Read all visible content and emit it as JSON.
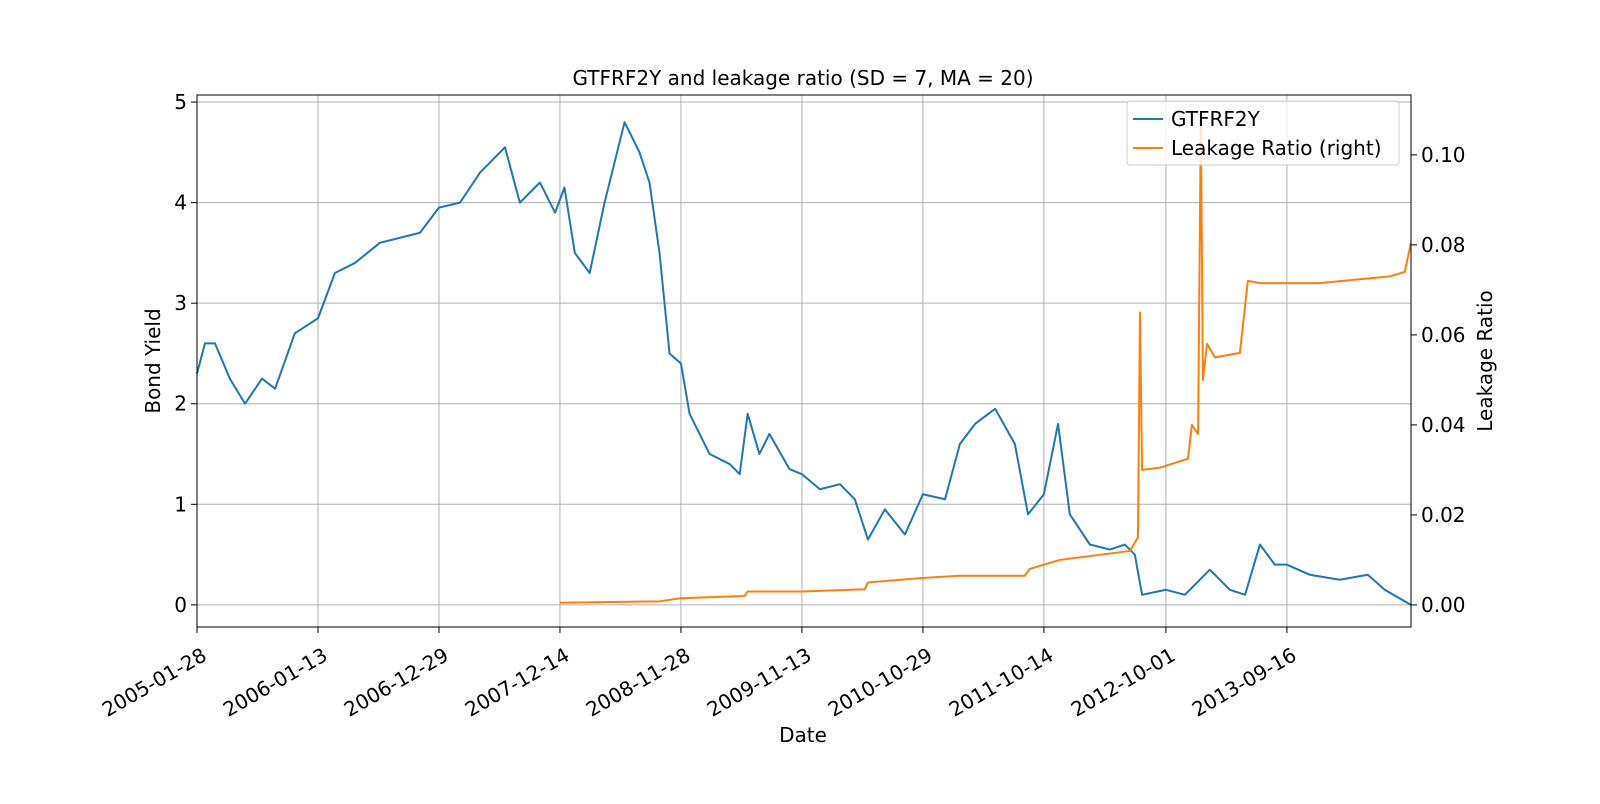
{
  "chart_data": {
    "type": "line",
    "title": "GTFRF2Y and leakage ratio (SD = 7, MA = 20)",
    "x_label": "Date",
    "y_label": "Bond Yield",
    "y2_label": "Leakage Ratio",
    "xlim": [
      "2005-01-28",
      "2014-09-10"
    ],
    "xticks": [
      "2005-01-28",
      "2006-01-13",
      "2006-12-29",
      "2007-12-14",
      "2008-11-28",
      "2009-11-13",
      "2010-10-29",
      "2011-10-14",
      "2012-10-01",
      "2013-09-16"
    ],
    "ylim": [
      -0.22,
      5.07
    ],
    "yticks": [
      0,
      1,
      2,
      3,
      4,
      5
    ],
    "y2lim": [
      -0.0049,
      0.1133
    ],
    "y2ticks": [
      {
        "value": 0,
        "label": "0.00"
      },
      {
        "value": 0.02,
        "label": "0.02"
      },
      {
        "value": 0.04,
        "label": "0.04"
      },
      {
        "value": 0.06,
        "label": "0.06"
      },
      {
        "value": 0.08,
        "label": "0.08"
      },
      {
        "value": 0.1,
        "label": "0.10"
      }
    ],
    "grid": true,
    "legend": "upper right",
    "series": [
      {
        "name": "GTFRF2Y",
        "color": "#1f77b4",
        "axis": "y",
        "x": [
          "2005-01-28",
          "2005-02-20",
          "2005-03-21",
          "2005-05-03",
          "2005-06-16",
          "2005-08-04",
          "2005-09-11",
          "2005-11-07",
          "2006-01-13",
          "2006-03-03",
          "2006-04-30",
          "2006-07-11",
          "2006-11-04",
          "2006-12-29",
          "2007-02-28",
          "2007-04-27",
          "2007-07-08",
          "2007-08-20",
          "2007-10-17",
          "2007-11-30",
          "2007-12-27",
          "2008-01-26",
          "2008-03-09",
          "2008-04-21",
          "2008-05-20",
          "2008-06-18",
          "2008-07-31",
          "2008-08-29",
          "2008-09-27",
          "2008-10-26",
          "2008-11-28",
          "2008-12-23",
          "2009-02-19",
          "2009-04-18",
          "2009-05-17",
          "2009-06-09",
          "2009-07-13",
          "2009-08-11",
          "2009-10-08",
          "2009-11-13",
          "2010-01-04",
          "2010-03-03",
          "2010-04-15",
          "2010-05-23",
          "2010-07-11",
          "2010-09-07",
          "2010-10-29",
          "2011-01-01",
          "2011-02-13",
          "2011-03-29",
          "2011-05-26",
          "2011-07-22",
          "2011-08-29",
          "2011-10-14",
          "2011-11-24",
          "2011-12-28",
          "2012-02-24",
          "2012-04-22",
          "2012-06-04",
          "2012-07-03",
          "2012-07-24",
          "2012-10-01",
          "2012-11-25",
          "2013-02-05",
          "2013-04-04",
          "2013-05-18",
          "2013-06-30",
          "2013-08-12",
          "2013-09-16",
          "2013-11-21",
          "2014-02-16",
          "2014-05-08",
          "2014-06-26",
          "2014-09-10"
        ],
        "values": [
          2.3,
          2.6,
          2.6,
          2.25,
          2.0,
          2.25,
          2.15,
          2.7,
          2.85,
          3.3,
          3.4,
          3.6,
          3.7,
          3.95,
          4.0,
          4.3,
          4.55,
          4.0,
          4.2,
          3.9,
          4.15,
          3.5,
          3.3,
          4.0,
          4.4,
          4.8,
          4.5,
          4.2,
          3.5,
          2.5,
          2.4,
          1.9,
          1.5,
          1.4,
          1.3,
          1.9,
          1.5,
          1.7,
          1.35,
          1.3,
          1.15,
          1.2,
          1.05,
          0.65,
          0.95,
          0.7,
          1.1,
          1.05,
          1.6,
          1.8,
          1.95,
          1.6,
          0.9,
          1.1,
          1.8,
          0.9,
          0.6,
          0.55,
          0.6,
          0.5,
          0.1,
          0.15,
          0.1,
          0.35,
          0.15,
          0.1,
          0.6,
          0.4,
          0.4,
          0.3,
          0.25,
          0.3,
          0.15,
          0.0
        ]
      },
      {
        "name": "Leakage Ratio (right)",
        "color": "#ff7f0e",
        "axis": "y2",
        "x": [
          "2007-12-14",
          "2008-09-27",
          "2008-11-28",
          "2009-05-31",
          "2009-06-09",
          "2009-11-13",
          "2010-05-14",
          "2010-05-23",
          "2010-10-29",
          "2011-02-13",
          "2011-08-20",
          "2011-09-03",
          "2011-11-29",
          "2012-06-19",
          "2012-07-12",
          "2012-07-18",
          "2012-07-24",
          "2012-09-14",
          "2012-12-04",
          "2012-12-15",
          "2013-01-02",
          "2013-01-10",
          "2013-01-16",
          "2013-01-28",
          "2013-02-20",
          "2013-05-03",
          "2013-05-26",
          "2013-06-30",
          "2013-12-20",
          "2014-07-11",
          "2014-08-23",
          "2014-09-10"
        ],
        "values": [
          0.0005,
          0.0008,
          0.0015,
          0.002,
          0.003,
          0.003,
          0.0035,
          0.005,
          0.006,
          0.0065,
          0.0065,
          0.008,
          0.01,
          0.012,
          0.015,
          0.065,
          0.03,
          0.0305,
          0.0325,
          0.04,
          0.038,
          0.108,
          0.05,
          0.058,
          0.055,
          0.056,
          0.072,
          0.0715,
          0.0715,
          0.073,
          0.074,
          0.0805
        ]
      }
    ]
  }
}
